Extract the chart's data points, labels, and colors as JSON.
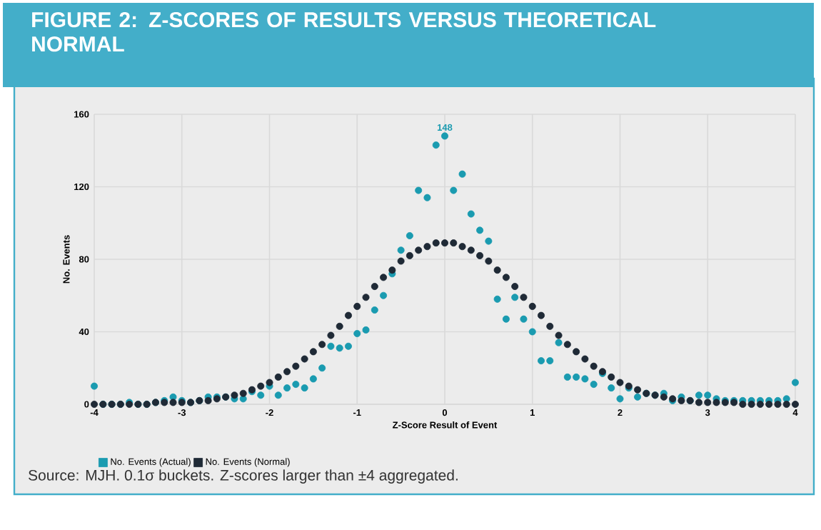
{
  "chart_data": {
    "type": "scatter",
    "title": "FIGURE 2: Z-SCORES OF RESULTS VERSUS THEORETICAL NORMAL",
    "xlabel": "Z-Score Result of Event",
    "ylabel": "No. Events",
    "x": [
      -4,
      -3.9,
      -3.8,
      -3.7,
      -3.6,
      -3.5,
      -3.4,
      -3.3,
      -3.2,
      -3.1,
      -3,
      -2.9,
      -2.8,
      -2.7,
      -2.6,
      -2.5,
      -2.4,
      -2.3,
      -2.2,
      -2.1,
      -2,
      -1.9,
      -1.8,
      -1.7,
      -1.6,
      -1.5,
      -1.4,
      -1.3,
      -1.2,
      -1.1,
      -1,
      -0.9,
      -0.8,
      -0.7,
      -0.6,
      -0.5,
      -0.4,
      -0.3,
      -0.2,
      -0.1,
      0,
      0.1,
      0.2,
      0.3,
      0.4,
      0.5,
      0.6,
      0.7,
      0.8,
      0.9,
      1,
      1.1,
      1.2,
      1.3,
      1.4,
      1.5,
      1.6,
      1.7,
      1.8,
      1.9,
      2,
      2.1,
      2.2,
      2.3,
      2.4,
      2.5,
      2.6,
      2.7,
      2.8,
      2.9,
      3,
      3.1,
      3.2,
      3.3,
      3.4,
      3.5,
      3.6,
      3.7,
      3.8,
      3.9,
      4
    ],
    "series": [
      {
        "name": "No. Events (Actual)",
        "color": "#1a9bb0",
        "values": [
          10,
          0,
          0,
          0,
          1,
          0,
          0,
          1,
          2,
          4,
          2,
          1,
          2,
          4,
          4,
          4,
          3,
          3,
          7,
          5,
          10,
          5,
          9,
          11,
          9,
          14,
          20,
          32,
          31,
          32,
          39,
          41,
          52,
          60,
          72,
          85,
          93,
          118,
          114,
          143,
          148,
          118,
          127,
          105,
          96,
          90,
          58,
          47,
          59,
          47,
          40,
          24,
          24,
          34,
          15,
          15,
          14,
          11,
          17,
          9,
          3,
          9,
          4,
          6,
          5,
          6,
          2,
          4,
          2,
          5,
          5,
          3,
          2,
          2,
          2,
          2,
          2,
          2,
          2,
          3,
          12
        ],
        "value_labels": [
          null,
          null,
          null,
          null,
          null,
          null,
          null,
          null,
          null,
          null,
          null,
          null,
          null,
          null,
          null,
          null,
          null,
          null,
          null,
          null,
          null,
          null,
          null,
          null,
          null,
          null,
          null,
          null,
          null,
          null,
          null,
          null,
          null,
          null,
          null,
          null,
          null,
          null,
          null,
          null,
          "148",
          null,
          null,
          null,
          null,
          null,
          null,
          null,
          null,
          null,
          null,
          null,
          null,
          null,
          null,
          null,
          null,
          null,
          null,
          null,
          null,
          null,
          null,
          null,
          null,
          null,
          null,
          null,
          null,
          null,
          null,
          null,
          null,
          null,
          null,
          null,
          null,
          null,
          null,
          null,
          null
        ]
      },
      {
        "name": "No. Events (Normal)",
        "color": "#1f2a36",
        "values": [
          0,
          0,
          0,
          0,
          0,
          0,
          0,
          1,
          1,
          1,
          1,
          1,
          2,
          2,
          3,
          4,
          5,
          6,
          8,
          10,
          12,
          15,
          18,
          21,
          25,
          29,
          33,
          38,
          43,
          49,
          54,
          59,
          65,
          70,
          74,
          79,
          82,
          85,
          87,
          89,
          89,
          89,
          87,
          85,
          82,
          79,
          74,
          70,
          65,
          59,
          54,
          49,
          43,
          38,
          33,
          29,
          25,
          21,
          18,
          15,
          12,
          10,
          8,
          6,
          5,
          4,
          3,
          2,
          2,
          1,
          1,
          1,
          1,
          1,
          0,
          0,
          0,
          0,
          0,
          0,
          0
        ]
      }
    ],
    "xlim": [
      -4,
      4
    ],
    "xticks": [
      -4,
      -3,
      -2,
      -1,
      0,
      1,
      2,
      3,
      4
    ],
    "ylim": [
      0,
      160
    ],
    "yticks": [
      0,
      40,
      80,
      120,
      160
    ],
    "grid": true,
    "legend": "bottom left",
    "marker": "circle",
    "annotations": [
      "Source: MJH. 0.1σ buckets. Z-scores larger than ±4 aggregated."
    ]
  }
}
